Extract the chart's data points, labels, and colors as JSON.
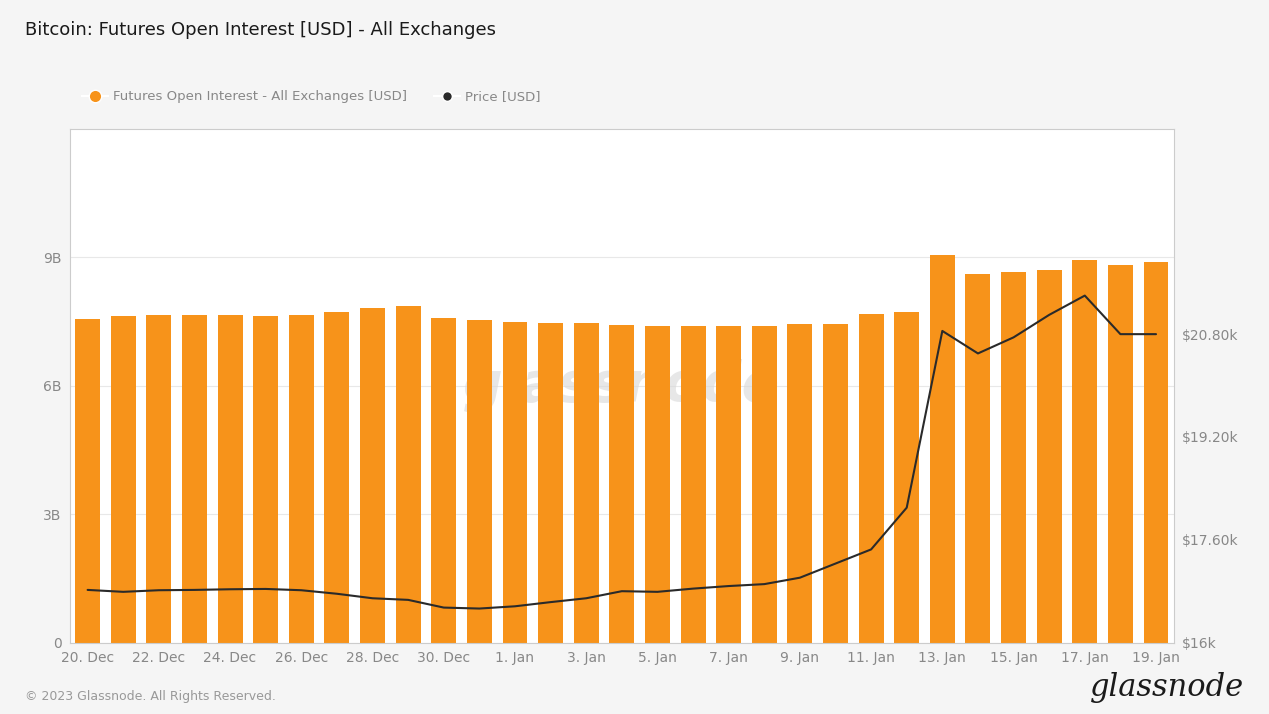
{
  "title": "Bitcoin: Futures Open Interest [USD] - All Exchanges",
  "legend_bar": "Futures Open Interest - All Exchanges [USD]",
  "legend_line": "Price [USD]",
  "bar_color": "#F7931A",
  "line_color": "#2a2a2a",
  "background_color": "#f5f5f5",
  "chart_bg": "#ffffff",
  "footer": "© 2023 Glassnode. All Rights Reserved.",
  "x_labels": [
    "20. Dec",
    "22. Dec",
    "24. Dec",
    "26. Dec",
    "28. Dec",
    "30. Dec",
    "1. Jan",
    "3. Jan",
    "5. Jan",
    "7. Jan",
    "9. Jan",
    "11. Jan",
    "13. Jan",
    "15. Jan",
    "17. Jan",
    "19. Jan"
  ],
  "bar_values": [
    7550000000.0,
    7620000000.0,
    7650000000.0,
    7650000000.0,
    7640000000.0,
    7630000000.0,
    7640000000.0,
    7720000000.0,
    7820000000.0,
    7850000000.0,
    7580000000.0,
    7520000000.0,
    7480000000.0,
    7470000000.0,
    7460000000.0,
    7420000000.0,
    7390000000.0,
    7380000000.0,
    7400000000.0,
    7380000000.0,
    7440000000.0,
    7440000000.0,
    7680000000.0,
    7720000000.0,
    9050000000.0,
    8600000000.0,
    8650000000.0,
    8700000000.0,
    8920000000.0,
    8820000000.0,
    8880000000.0
  ],
  "price_values": [
    16820,
    16790,
    16815,
    16820,
    16830,
    16835,
    16815,
    16760,
    16690,
    16665,
    16545,
    16530,
    16565,
    16630,
    16690,
    16800,
    16790,
    16840,
    16880,
    16910,
    17010,
    17230,
    17450,
    18100,
    20850,
    20500,
    20750,
    21100,
    21400,
    20800,
    20800
  ],
  "ylim_left": [
    0,
    12000000000.0
  ],
  "ylim_right": [
    16000,
    24000
  ],
  "yticks_left": [
    0,
    3000000000.0,
    6000000000.0,
    9000000000.0
  ],
  "yticks_left_labels": [
    "0",
    "3B",
    "6B",
    "9B"
  ],
  "yticks_right": [
    16000,
    17600,
    19200,
    20800
  ],
  "yticks_right_labels": [
    "$16k",
    "$17.60k",
    "$19.20k",
    "$20.80k"
  ],
  "border_color": "#cccccc",
  "tick_color": "#888888",
  "grid_color": "#e8e8e8"
}
